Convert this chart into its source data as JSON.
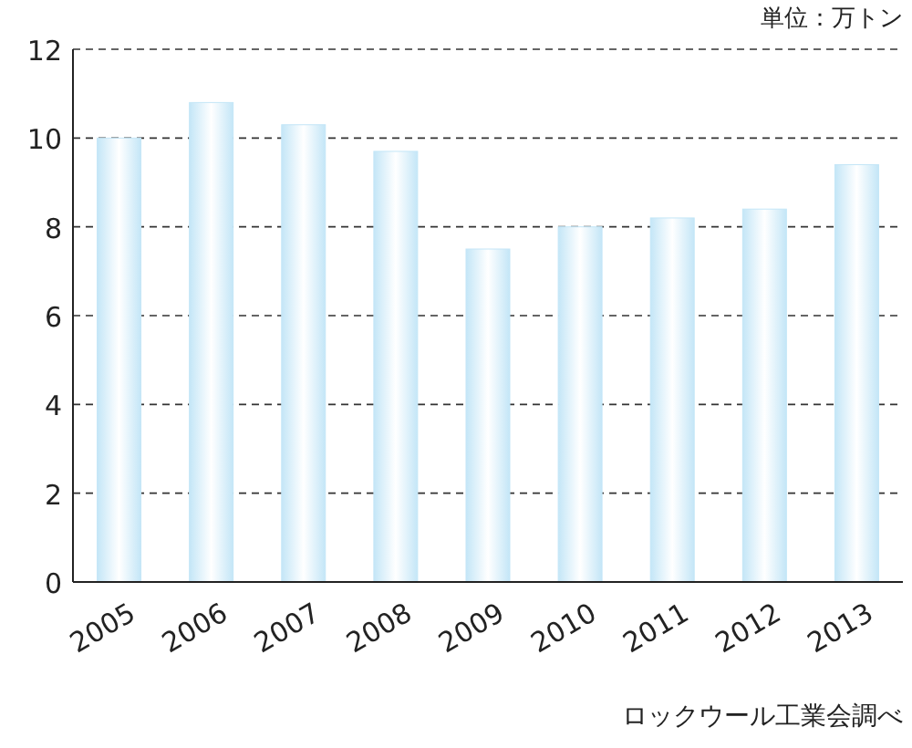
{
  "chart_data": {
    "type": "bar",
    "title": "単位：万トン",
    "categories": [
      "2005",
      "2006",
      "2007",
      "2008",
      "2009",
      "2010",
      "2011",
      "2012",
      "2013"
    ],
    "values": [
      10.0,
      10.8,
      10.3,
      9.7,
      7.5,
      8.0,
      8.2,
      8.4,
      9.4
    ],
    "color": "#c4e6f7",
    "ylim": [
      0,
      12
    ],
    "yticks": [
      0,
      2,
      4,
      6,
      8,
      10,
      12
    ],
    "grid": "y",
    "line_style": "dashed",
    "annotations": [
      "ロックウール工業会調べ"
    ]
  }
}
